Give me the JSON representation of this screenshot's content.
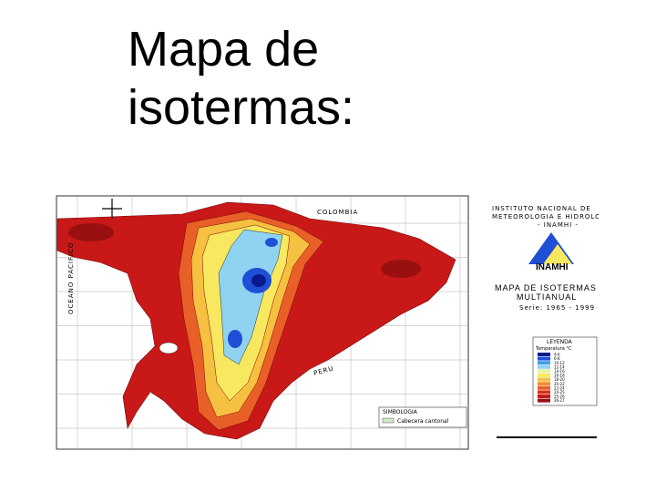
{
  "slide": {
    "title": "Mapa de isotermas:"
  },
  "map": {
    "labels": {
      "north": "COLOMBIA",
      "ocean": "OCEANO PACIFICO",
      "south": "PERU"
    },
    "institution": [
      "INSTITUTO NACIONAL DE",
      "METEOROLOGIA E HIDROLOGIA",
      "- INAMHI -"
    ],
    "logo": "INAMHI",
    "map_title": [
      "MAPA DE ISOTERMAS",
      "MULTIANUAL"
    ],
    "series": "Serie: 1965 - 1999",
    "legend": {
      "title": "LEYENDA",
      "subtitle": "Temperatura °C",
      "items": [
        {
          "label": "4-6",
          "color": "#0a1a8c"
        },
        {
          "label": "6-8",
          "color": "#1f4fd6"
        },
        {
          "label": "10-12",
          "color": "#3fa0e6"
        },
        {
          "label": "12-14",
          "color": "#8fd3f0"
        },
        {
          "label": "14-16",
          "color": "#e6f0a0"
        },
        {
          "label": "16-18",
          "color": "#f8e860"
        },
        {
          "label": "18-20",
          "color": "#f6c040"
        },
        {
          "label": "20-22",
          "color": "#f29030"
        },
        {
          "label": "22-24",
          "color": "#e86028"
        },
        {
          "label": "24-25",
          "color": "#d83020"
        },
        {
          "label": "25-26",
          "color": "#c81818"
        },
        {
          "label": "26-27",
          "color": "#9a1010"
        }
      ]
    },
    "symbology": {
      "title": "SIMBOLOGIA",
      "item": "Cabecera cantonal"
    }
  }
}
